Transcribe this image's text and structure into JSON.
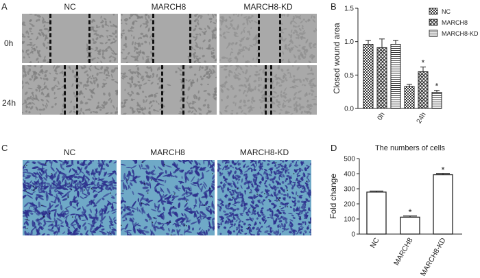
{
  "panels": {
    "A": {
      "letter": "A",
      "columns": [
        "NC",
        "MARCH8",
        "MARCH8-KD"
      ],
      "rows": [
        "0h",
        "24h"
      ]
    },
    "B": {
      "letter": "B"
    },
    "C": {
      "letter": "C",
      "columns": [
        "NC",
        "MARCH8",
        "MARCH8-KD"
      ]
    },
    "D": {
      "letter": "D"
    }
  },
  "chart_data": [
    {
      "type": "bar",
      "title": "",
      "xlabel": "",
      "ylabel": "Closed wound area",
      "categories": [
        "0h",
        "24h"
      ],
      "ylim": [
        0,
        1.5
      ],
      "yticks": [
        "0.0",
        "0.5",
        "1.0",
        "1.5"
      ],
      "legend": "top-right",
      "series": [
        {
          "name": "NC",
          "pattern": "checker",
          "values": [
            0.96,
            0.33
          ],
          "errors": [
            0.06,
            0.03
          ],
          "significant": [
            false,
            false
          ]
        },
        {
          "name": "MARCH8",
          "pattern": "crosshatch",
          "values": [
            0.91,
            0.55
          ],
          "errors": [
            0.13,
            0.07
          ],
          "significant": [
            false,
            true
          ]
        },
        {
          "name": "MARCH8-KD",
          "pattern": "hlines",
          "values": [
            0.96,
            0.24
          ],
          "errors": [
            0.06,
            0.03
          ],
          "significant": [
            false,
            true
          ]
        }
      ],
      "annotations": [
        "*"
      ]
    },
    {
      "type": "bar",
      "title": "The numbers of cells",
      "xlabel": "",
      "ylabel": "Fold change",
      "categories": [
        "NC",
        "MARCH8",
        "MARCH8-KD"
      ],
      "values": [
        278,
        112,
        393
      ],
      "errors": [
        7,
        8,
        8
      ],
      "significant": [
        false,
        true,
        true
      ],
      "ylim": [
        0,
        500
      ],
      "yticks": [
        "0",
        "100",
        "200",
        "300",
        "400",
        "500"
      ],
      "annotations": [
        "*"
      ]
    }
  ],
  "colors": {
    "scratch_bg": "#a9a9a9",
    "scratch_cells": "#7d7d7d",
    "scratch_kd": "#8e8e8e",
    "stain_bg": "#6fa9c7",
    "stain_cells": "#2c2e8c",
    "axis": "#222222"
  }
}
